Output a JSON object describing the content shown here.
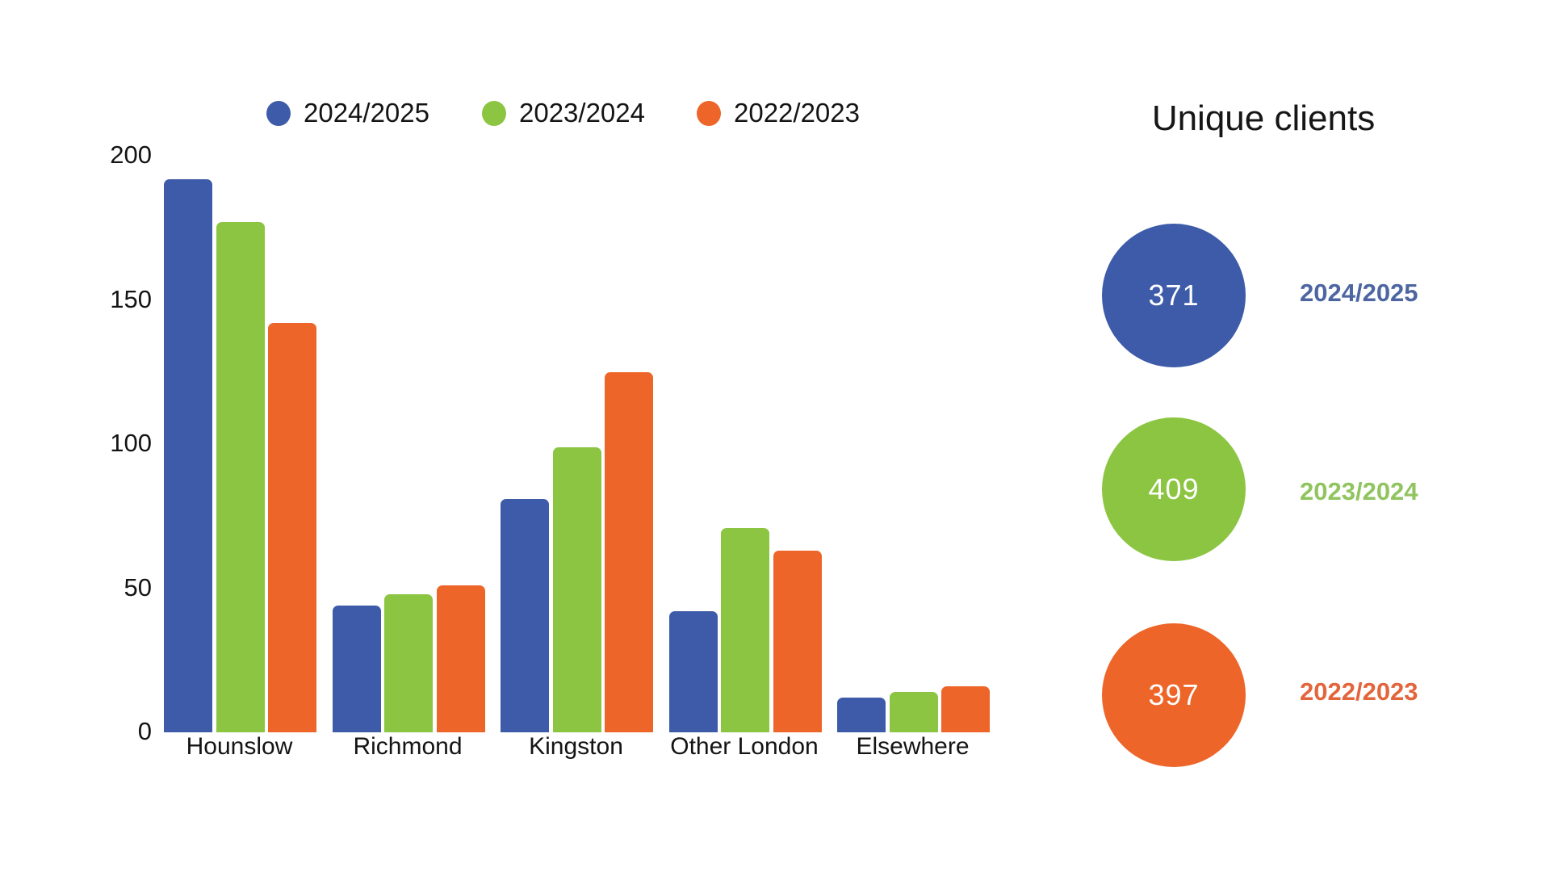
{
  "chart_data": {
    "type": "bar",
    "title": "",
    "xlabel": "",
    "ylabel": "",
    "categories": [
      "Hounslow",
      "Richmond",
      "Kingston",
      "Other London",
      "Elsewhere"
    ],
    "series": [
      {
        "name": "2024/2025",
        "color": "#3D5BA8",
        "values": [
          192,
          44,
          81,
          42,
          12
        ]
      },
      {
        "name": "2023/2024",
        "color": "#8BC541",
        "values": [
          177,
          48,
          99,
          71,
          14
        ]
      },
      {
        "name": "2022/2023",
        "color": "#ED6528",
        "values": [
          142,
          51,
          125,
          63,
          16
        ]
      }
    ],
    "ylim": [
      0,
      200
    ],
    "yticks": [
      0,
      50,
      100,
      150,
      200
    ],
    "grid": false,
    "legend_position": "top"
  },
  "unique_clients": {
    "title": "Unique clients",
    "items": [
      {
        "value": "371",
        "label": "2024/2025",
        "circle_color": "#3D5BA8",
        "label_color": "#4D66A2"
      },
      {
        "value": "409",
        "label": "2023/2024",
        "circle_color": "#8BC541",
        "label_color": "#90C45F"
      },
      {
        "value": "397",
        "label": "2022/2023",
        "circle_color": "#ED6528",
        "label_color": "#E2653C"
      }
    ]
  }
}
